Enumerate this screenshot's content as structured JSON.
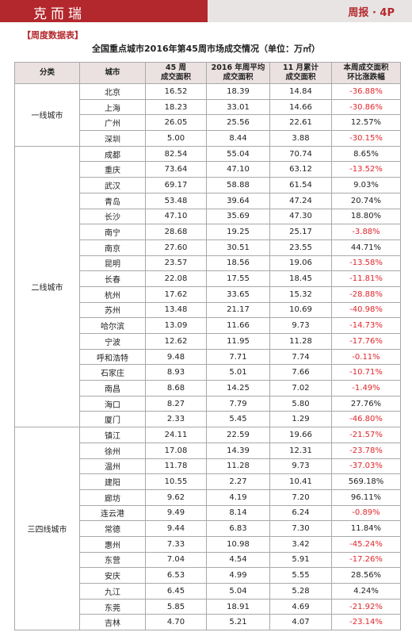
{
  "header": {
    "logo": "克而瑞",
    "right": "周报 · 4P"
  },
  "section_label": "【周度数据表】",
  "table": {
    "title": "全国重点城市2016年第45周市场成交情况（单位：万㎡）",
    "columns": [
      [
        "分类"
      ],
      [
        "城市"
      ],
      [
        "45 周",
        "成交面积"
      ],
      [
        "2016 年周平均",
        "成交面积"
      ],
      [
        "11 月累计",
        "成交面积"
      ],
      [
        "本周成交面积",
        "环比涨跌幅"
      ]
    ],
    "groups": [
      {
        "label": "一线城市",
        "rows": [
          [
            "北京",
            "16.52",
            "18.39",
            "14.84",
            "-36.88%"
          ],
          [
            "上海",
            "18.23",
            "33.01",
            "14.66",
            "-30.86%"
          ],
          [
            "广州",
            "26.05",
            "25.56",
            "22.61",
            "12.57%"
          ],
          [
            "深圳",
            "5.00",
            "8.44",
            "3.88",
            "-30.15%"
          ]
        ]
      },
      {
        "label": "二线城市",
        "rows": [
          [
            "成都",
            "82.54",
            "55.04",
            "70.74",
            "8.65%"
          ],
          [
            "重庆",
            "73.64",
            "47.10",
            "63.12",
            "-13.52%"
          ],
          [
            "武汉",
            "69.17",
            "58.88",
            "61.54",
            "9.03%"
          ],
          [
            "青岛",
            "53.48",
            "39.64",
            "47.24",
            "20.74%"
          ],
          [
            "长沙",
            "47.10",
            "35.69",
            "47.30",
            "18.80%"
          ],
          [
            "南宁",
            "28.68",
            "19.25",
            "25.17",
            "-3.88%"
          ],
          [
            "南京",
            "27.60",
            "30.51",
            "23.55",
            "44.71%"
          ],
          [
            "昆明",
            "23.57",
            "18.56",
            "19.06",
            "-13.58%"
          ],
          [
            "长春",
            "22.08",
            "17.55",
            "18.45",
            "-11.81%"
          ],
          [
            "杭州",
            "17.62",
            "33.65",
            "15.32",
            "-28.88%"
          ],
          [
            "苏州",
            "13.48",
            "21.17",
            "10.69",
            "-40.98%"
          ],
          [
            "哈尔滨",
            "13.09",
            "11.66",
            "9.73",
            "-14.73%"
          ],
          [
            "宁波",
            "12.62",
            "11.95",
            "11.28",
            "-17.76%"
          ],
          [
            "呼和浩特",
            "9.48",
            "7.71",
            "7.74",
            "-0.11%"
          ],
          [
            "石家庄",
            "8.93",
            "5.01",
            "7.66",
            "-10.71%"
          ],
          [
            "南昌",
            "8.68",
            "14.25",
            "7.02",
            "-1.49%"
          ],
          [
            "海口",
            "8.27",
            "7.79",
            "5.80",
            "27.76%"
          ],
          [
            "厦门",
            "2.33",
            "5.45",
            "1.29",
            "-46.80%"
          ]
        ]
      },
      {
        "label": "三四线城市",
        "rows": [
          [
            "镇江",
            "24.11",
            "22.59",
            "19.66",
            "-21.57%"
          ],
          [
            "徐州",
            "17.08",
            "14.39",
            "12.31",
            "-23.78%"
          ],
          [
            "温州",
            "11.78",
            "11.28",
            "9.73",
            "-37.03%"
          ],
          [
            "建阳",
            "10.55",
            "2.27",
            "10.41",
            "569.18%"
          ],
          [
            "廊坊",
            "9.62",
            "4.19",
            "7.20",
            "96.11%"
          ],
          [
            "连云港",
            "9.49",
            "8.14",
            "6.24",
            "-0.89%"
          ],
          [
            "常德",
            "9.44",
            "6.83",
            "7.30",
            "11.84%"
          ],
          [
            "惠州",
            "7.33",
            "10.98",
            "3.42",
            "-45.24%"
          ],
          [
            "东营",
            "7.04",
            "4.54",
            "5.91",
            "-17.26%"
          ],
          [
            "安庆",
            "6.53",
            "4.99",
            "5.55",
            "28.56%"
          ],
          [
            "九江",
            "6.45",
            "5.04",
            "5.28",
            "4.24%"
          ],
          [
            "东莞",
            "5.85",
            "18.91",
            "4.69",
            "-21.92%"
          ],
          [
            "吉林",
            "4.70",
            "5.21",
            "4.07",
            "-23.14%"
          ]
        ]
      }
    ]
  }
}
